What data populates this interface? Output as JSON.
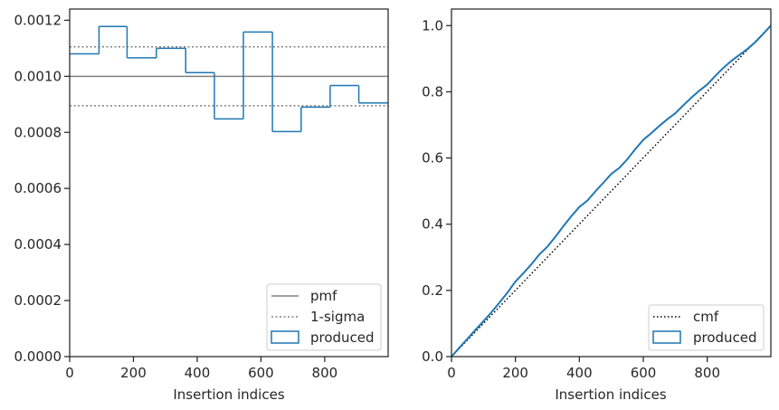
{
  "chart_data": [
    {
      "type": "step",
      "xlabel": "Insertion indices",
      "ylabel": "",
      "xlim": [
        0,
        999
      ],
      "ylim": [
        0,
        0.00124
      ],
      "xticks": [
        0,
        200,
        400,
        600,
        800
      ],
      "xtick_labels": [
        "0",
        "200",
        "400",
        "600",
        "800"
      ],
      "yticks": [
        0,
        0.0002,
        0.0004,
        0.0006,
        0.0008,
        0.001,
        0.0012
      ],
      "ytick_labels": [
        "0.0000",
        "0.0002",
        "0.0004",
        "0.0006",
        "0.0008",
        "0.0010",
        "0.0012"
      ],
      "pmf": 0.001,
      "sigma_band": [
        0.000895,
        0.001105
      ],
      "bins": {
        "edges": [
          0,
          92,
          180,
          272,
          364,
          454,
          545,
          636,
          726,
          817,
          907,
          999
        ],
        "values": [
          0.00108,
          0.001178,
          0.001066,
          0.0011,
          0.001013,
          0.000848,
          0.001158,
          0.000803,
          0.00089,
          0.000967,
          0.000905
        ]
      },
      "legend": {
        "location": "lower right",
        "entries": [
          "pmf",
          "1-sigma",
          "produced"
        ]
      },
      "colors": {
        "pmf": "#808080",
        "sigma": "#808080",
        "produced": "#1f77b4"
      }
    },
    {
      "type": "line",
      "xlabel": "Insertion indices",
      "ylabel": "",
      "xlim": [
        0,
        999
      ],
      "ylim": [
        0,
        1.05
      ],
      "xticks": [
        0,
        200,
        400,
        600,
        800
      ],
      "xtick_labels": [
        "0",
        "200",
        "400",
        "600",
        "800"
      ],
      "yticks": [
        0,
        0.2,
        0.4,
        0.6,
        0.8,
        1.0
      ],
      "ytick_labels": [
        "0.0",
        "0.2",
        "0.4",
        "0.6",
        "0.8",
        "1.0"
      ],
      "cmf": {
        "x": [
          0,
          999
        ],
        "y": [
          0,
          1.0
        ]
      },
      "produced": {
        "x": [
          0,
          25,
          50,
          75,
          100,
          125,
          150,
          175,
          200,
          225,
          250,
          275,
          300,
          325,
          350,
          375,
          400,
          425,
          450,
          475,
          500,
          525,
          550,
          575,
          600,
          625,
          650,
          675,
          700,
          725,
          750,
          775,
          800,
          825,
          850,
          875,
          900,
          925,
          950,
          975,
          999
        ],
        "y": [
          0,
          0.027,
          0.054,
          0.081,
          0.107,
          0.134,
          0.163,
          0.193,
          0.227,
          0.252,
          0.279,
          0.309,
          0.332,
          0.362,
          0.394,
          0.424,
          0.452,
          0.471,
          0.499,
          0.525,
          0.552,
          0.57,
          0.596,
          0.627,
          0.655,
          0.675,
          0.697,
          0.717,
          0.735,
          0.759,
          0.782,
          0.803,
          0.822,
          0.848,
          0.872,
          0.893,
          0.911,
          0.929,
          0.95,
          0.975,
          1.0
        ]
      },
      "legend": {
        "location": "lower right",
        "entries": [
          "cmf",
          "produced"
        ]
      },
      "colors": {
        "cmf": "#000000",
        "produced": "#1f77b4"
      }
    }
  ]
}
